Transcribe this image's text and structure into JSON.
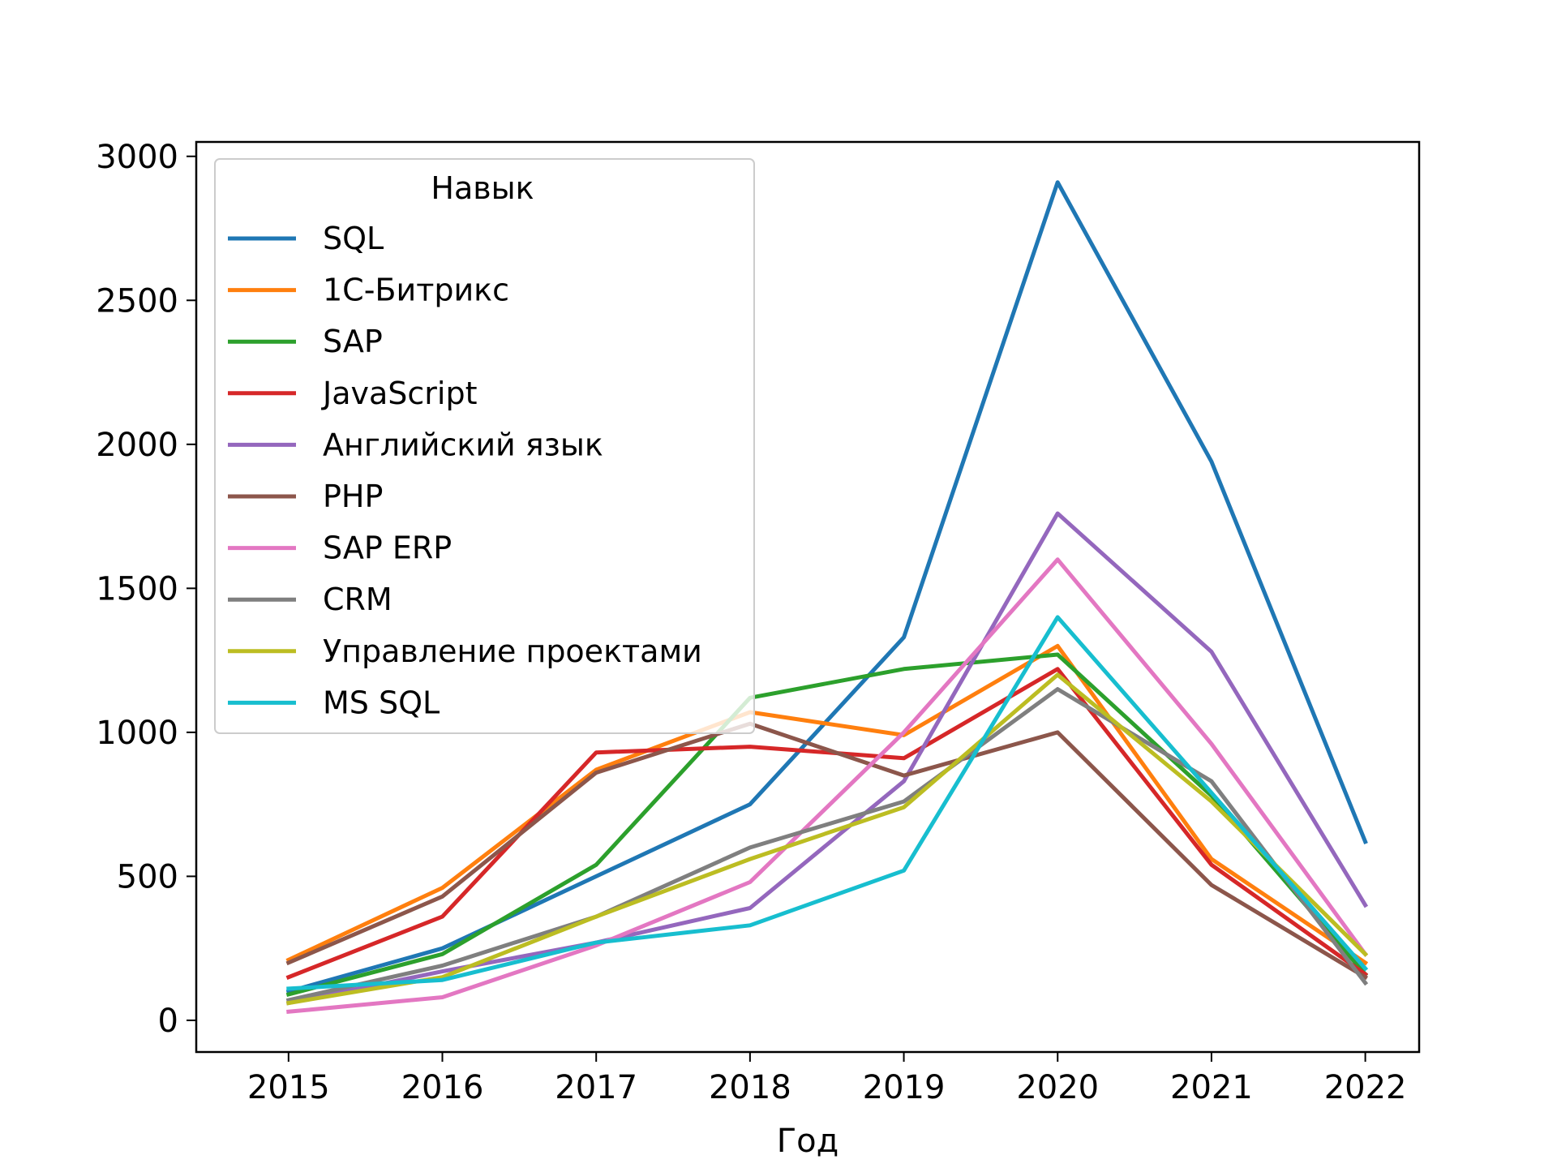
{
  "chart_data": {
    "type": "line",
    "xlabel": "Год",
    "ylabel": "",
    "x": [
      2015,
      2016,
      2017,
      2018,
      2019,
      2020,
      2021,
      2022
    ],
    "ylim": [
      -110,
      3050
    ],
    "xlim": [
      2014.4,
      2022.35
    ],
    "yticks": [
      0,
      500,
      1000,
      1500,
      2000,
      2500,
      3000
    ],
    "grid": false,
    "legend": {
      "title": "Навык",
      "placement": "upper-left"
    },
    "series": [
      {
        "name": "SQL",
        "color": "#1f77b4",
        "values": [
          100,
          250,
          500,
          750,
          1330,
          2910,
          1940,
          620
        ]
      },
      {
        "name": "1С-Битрикс",
        "color": "#ff7f0e",
        "values": [
          210,
          460,
          870,
          1070,
          990,
          1300,
          560,
          200
        ]
      },
      {
        "name": "SAP",
        "color": "#2ca02c",
        "values": [
          90,
          230,
          540,
          1120,
          1220,
          1270,
          780,
          160
        ]
      },
      {
        "name": "JavaScript",
        "color": "#d62728",
        "values": [
          150,
          360,
          930,
          950,
          910,
          1220,
          540,
          160
        ]
      },
      {
        "name": "Английский язык",
        "color": "#9467bd",
        "values": [
          60,
          170,
          270,
          390,
          830,
          1760,
          1280,
          400
        ]
      },
      {
        "name": "PHP",
        "color": "#8c564b",
        "values": [
          200,
          430,
          860,
          1030,
          850,
          1000,
          470,
          150
        ]
      },
      {
        "name": "SAP ERP",
        "color": "#e377c2",
        "values": [
          30,
          80,
          260,
          480,
          1000,
          1600,
          960,
          230
        ]
      },
      {
        "name": "CRM",
        "color": "#7f7f7f",
        "values": [
          70,
          190,
          360,
          600,
          760,
          1150,
          830,
          130
        ]
      },
      {
        "name": "Управление проектами",
        "color": "#bcbd22",
        "values": [
          60,
          150,
          360,
          560,
          740,
          1200,
          760,
          230
        ]
      },
      {
        "name": "MS SQL",
        "color": "#17becf",
        "values": [
          110,
          140,
          270,
          330,
          520,
          1400,
          790,
          180
        ]
      }
    ]
  }
}
